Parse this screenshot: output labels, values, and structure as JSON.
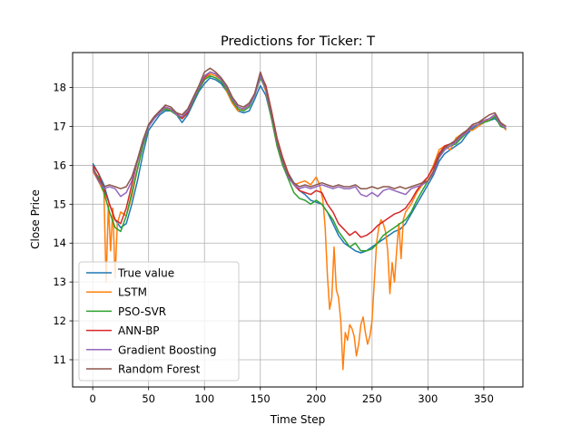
{
  "chart_data": {
    "type": "line",
    "title": "Predictions for Ticker: T",
    "xlabel": "Time Step",
    "ylabel": "Close Price",
    "xlim": [
      -18,
      385
    ],
    "ylim": [
      10.3,
      18.9
    ],
    "xticks": [
      0,
      50,
      100,
      150,
      200,
      250,
      300,
      350
    ],
    "yticks": [
      11,
      12,
      13,
      14,
      15,
      16,
      17,
      18
    ],
    "grid": true,
    "legend": "lower-left",
    "series": [
      {
        "name": "True value",
        "color": "#1f77b4",
        "x": [
          0,
          5,
          10,
          15,
          20,
          25,
          30,
          35,
          40,
          45,
          50,
          55,
          60,
          65,
          70,
          75,
          80,
          85,
          90,
          95,
          100,
          105,
          110,
          115,
          120,
          125,
          130,
          135,
          140,
          145,
          150,
          155,
          160,
          165,
          170,
          175,
          180,
          185,
          190,
          195,
          200,
          205,
          210,
          215,
          220,
          225,
          230,
          235,
          240,
          245,
          250,
          255,
          260,
          265,
          270,
          275,
          280,
          285,
          290,
          295,
          300,
          305,
          310,
          315,
          320,
          325,
          330,
          335,
          340,
          345,
          350,
          355,
          360,
          365,
          370
        ],
        "y": [
          16.05,
          15.8,
          15.5,
          15.0,
          14.6,
          14.4,
          14.5,
          15.0,
          15.6,
          16.3,
          16.9,
          17.1,
          17.3,
          17.4,
          17.4,
          17.3,
          17.1,
          17.3,
          17.6,
          17.9,
          18.1,
          18.25,
          18.2,
          18.1,
          17.9,
          17.6,
          17.4,
          17.35,
          17.4,
          17.7,
          18.05,
          17.8,
          17.2,
          16.6,
          16.1,
          15.8,
          15.55,
          15.35,
          15.25,
          15.1,
          15.05,
          15.0,
          14.8,
          14.5,
          14.2,
          14.0,
          13.9,
          13.8,
          13.75,
          13.8,
          13.9,
          14.0,
          14.1,
          14.2,
          14.3,
          14.35,
          14.5,
          14.75,
          15.0,
          15.25,
          15.5,
          15.75,
          16.1,
          16.3,
          16.4,
          16.5,
          16.6,
          16.8,
          16.95,
          17.05,
          17.1,
          17.15,
          17.2,
          17.05,
          16.95
        ]
      },
      {
        "name": "LSTM",
        "color": "#ff7f0e",
        "x": [
          0,
          5,
          10,
          12,
          14,
          16,
          18,
          20,
          22,
          25,
          30,
          35,
          40,
          45,
          50,
          55,
          60,
          65,
          70,
          75,
          80,
          85,
          90,
          95,
          100,
          105,
          110,
          115,
          120,
          125,
          130,
          135,
          140,
          145,
          150,
          155,
          160,
          165,
          170,
          175,
          180,
          185,
          190,
          195,
          200,
          203,
          206,
          208,
          210,
          212,
          214,
          216,
          218,
          220,
          222,
          224,
          226,
          228,
          230,
          232,
          234,
          236,
          238,
          240,
          242,
          244,
          246,
          248,
          250,
          252,
          254,
          256,
          258,
          260,
          262,
          264,
          266,
          268,
          270,
          272,
          274,
          276,
          278,
          280,
          285,
          290,
          295,
          300,
          305,
          310,
          315,
          320,
          325,
          330,
          335,
          340,
          345,
          350,
          355,
          360,
          365,
          370
        ],
        "y": [
          15.85,
          15.6,
          15.3,
          13.0,
          15.0,
          13.8,
          14.9,
          13.1,
          14.5,
          14.8,
          14.7,
          15.2,
          15.9,
          16.5,
          17.0,
          17.2,
          17.4,
          17.5,
          17.4,
          17.3,
          17.2,
          17.4,
          17.7,
          18.0,
          18.2,
          18.35,
          18.3,
          18.2,
          17.9,
          17.6,
          17.4,
          17.45,
          17.55,
          17.8,
          18.3,
          17.9,
          17.2,
          16.5,
          16.0,
          15.7,
          15.5,
          15.55,
          15.6,
          15.5,
          15.7,
          15.5,
          15.1,
          14.4,
          13.2,
          12.3,
          12.6,
          13.9,
          12.8,
          12.6,
          12.0,
          10.75,
          11.7,
          11.5,
          11.9,
          11.8,
          11.6,
          11.1,
          11.4,
          11.9,
          12.1,
          11.7,
          11.4,
          11.6,
          12.0,
          13.0,
          14.0,
          14.4,
          14.6,
          14.5,
          14.3,
          13.8,
          12.7,
          13.5,
          13.0,
          13.8,
          14.5,
          13.6,
          14.6,
          14.8,
          15.0,
          15.3,
          15.5,
          15.7,
          16.0,
          16.4,
          16.5,
          16.4,
          16.7,
          16.8,
          16.9,
          16.9,
          17.0,
          17.1,
          17.2,
          17.3,
          17.1,
          16.9
        ]
      },
      {
        "name": "PSO-SVR",
        "color": "#2ca02c",
        "x": [
          0,
          5,
          10,
          15,
          20,
          25,
          30,
          35,
          40,
          45,
          50,
          55,
          60,
          65,
          70,
          75,
          80,
          85,
          90,
          95,
          100,
          105,
          110,
          115,
          120,
          125,
          130,
          135,
          140,
          145,
          150,
          155,
          160,
          165,
          170,
          175,
          180,
          185,
          190,
          195,
          200,
          205,
          210,
          215,
          220,
          225,
          230,
          235,
          240,
          245,
          250,
          255,
          260,
          265,
          270,
          275,
          280,
          285,
          290,
          295,
          300,
          305,
          310,
          315,
          320,
          325,
          330,
          335,
          340,
          345,
          350,
          355,
          360,
          365,
          370
        ],
        "y": [
          15.9,
          15.7,
          15.3,
          14.8,
          14.4,
          14.3,
          14.7,
          15.3,
          15.9,
          16.5,
          17.0,
          17.2,
          17.35,
          17.45,
          17.4,
          17.3,
          17.2,
          17.35,
          17.65,
          17.95,
          18.2,
          18.3,
          18.25,
          18.15,
          17.95,
          17.65,
          17.45,
          17.4,
          17.5,
          17.8,
          18.25,
          17.95,
          17.2,
          16.5,
          16.0,
          15.65,
          15.3,
          15.15,
          15.1,
          15.0,
          15.1,
          15.0,
          14.8,
          14.6,
          14.3,
          14.1,
          13.9,
          14.0,
          13.8,
          13.8,
          13.85,
          14.0,
          14.2,
          14.3,
          14.4,
          14.5,
          14.6,
          14.8,
          15.1,
          15.35,
          15.6,
          15.85,
          16.2,
          16.4,
          16.5,
          16.55,
          16.7,
          16.85,
          17.0,
          17.05,
          17.1,
          17.15,
          17.25,
          17.0,
          16.95
        ]
      },
      {
        "name": "ANN-BP",
        "color": "#d62728",
        "x": [
          0,
          5,
          10,
          15,
          20,
          25,
          30,
          35,
          40,
          45,
          50,
          55,
          60,
          65,
          70,
          75,
          80,
          85,
          90,
          95,
          100,
          105,
          110,
          115,
          120,
          125,
          130,
          135,
          140,
          145,
          150,
          155,
          160,
          165,
          170,
          175,
          180,
          185,
          190,
          195,
          200,
          205,
          210,
          215,
          220,
          225,
          230,
          235,
          240,
          245,
          250,
          255,
          260,
          265,
          270,
          275,
          280,
          285,
          290,
          295,
          300,
          305,
          310,
          315,
          320,
          325,
          330,
          335,
          340,
          345,
          350,
          355,
          360,
          365,
          370
        ],
        "y": [
          16.0,
          15.8,
          15.4,
          15.0,
          14.6,
          14.5,
          14.9,
          15.5,
          16.1,
          16.6,
          17.05,
          17.25,
          17.4,
          17.5,
          17.45,
          17.35,
          17.2,
          17.35,
          17.7,
          18.0,
          18.25,
          18.4,
          18.35,
          18.2,
          18.0,
          17.7,
          17.5,
          17.45,
          17.55,
          17.85,
          18.35,
          18.05,
          17.4,
          16.7,
          16.2,
          15.8,
          15.5,
          15.35,
          15.3,
          15.25,
          15.35,
          15.3,
          15.0,
          14.8,
          14.5,
          14.35,
          14.2,
          14.3,
          14.15,
          14.2,
          14.3,
          14.45,
          14.55,
          14.65,
          14.75,
          14.8,
          14.9,
          15.1,
          15.35,
          15.55,
          15.7,
          15.95,
          16.3,
          16.5,
          16.55,
          16.6,
          16.75,
          16.9,
          17.05,
          17.1,
          17.15,
          17.2,
          17.3,
          17.05,
          16.95
        ]
      },
      {
        "name": "Gradient Boosting",
        "color": "#9467bd",
        "x": [
          0,
          5,
          10,
          15,
          20,
          25,
          30,
          35,
          40,
          45,
          50,
          55,
          60,
          65,
          70,
          75,
          80,
          85,
          90,
          95,
          100,
          105,
          110,
          115,
          120,
          125,
          130,
          135,
          140,
          145,
          150,
          155,
          160,
          165,
          170,
          175,
          180,
          185,
          190,
          195,
          200,
          205,
          210,
          215,
          220,
          225,
          230,
          235,
          240,
          245,
          250,
          255,
          260,
          265,
          270,
          275,
          280,
          285,
          290,
          295,
          300,
          305,
          310,
          315,
          320,
          325,
          330,
          335,
          340,
          345,
          350,
          355,
          360,
          365,
          370
        ],
        "y": [
          15.9,
          15.6,
          15.4,
          15.45,
          15.4,
          15.2,
          15.3,
          15.6,
          16.1,
          16.6,
          17.0,
          17.2,
          17.35,
          17.5,
          17.45,
          17.3,
          17.25,
          17.4,
          17.7,
          18.0,
          18.3,
          18.4,
          18.35,
          18.2,
          18.0,
          17.7,
          17.5,
          17.45,
          17.55,
          17.8,
          18.3,
          17.95,
          17.3,
          16.6,
          16.1,
          15.7,
          15.5,
          15.4,
          15.45,
          15.4,
          15.45,
          15.5,
          15.45,
          15.4,
          15.45,
          15.4,
          15.4,
          15.45,
          15.25,
          15.2,
          15.3,
          15.2,
          15.35,
          15.4,
          15.35,
          15.3,
          15.25,
          15.4,
          15.45,
          15.5,
          15.6,
          15.8,
          16.2,
          16.4,
          16.5,
          16.6,
          16.75,
          16.85,
          17.0,
          17.05,
          17.15,
          17.2,
          17.3,
          17.05,
          16.95
        ]
      },
      {
        "name": "Random Forest",
        "color": "#8c564b",
        "x": [
          0,
          5,
          10,
          15,
          20,
          25,
          30,
          35,
          40,
          45,
          50,
          55,
          60,
          65,
          70,
          75,
          80,
          85,
          90,
          95,
          100,
          105,
          110,
          115,
          120,
          125,
          130,
          135,
          140,
          145,
          150,
          155,
          160,
          165,
          170,
          175,
          180,
          185,
          190,
          195,
          200,
          205,
          210,
          215,
          220,
          225,
          230,
          235,
          240,
          245,
          250,
          255,
          260,
          265,
          270,
          275,
          280,
          285,
          290,
          295,
          300,
          305,
          310,
          315,
          320,
          325,
          330,
          335,
          340,
          345,
          350,
          355,
          360,
          365,
          370
        ],
        "y": [
          15.95,
          15.65,
          15.45,
          15.5,
          15.45,
          15.4,
          15.45,
          15.7,
          16.15,
          16.65,
          17.05,
          17.25,
          17.4,
          17.55,
          17.5,
          17.35,
          17.3,
          17.45,
          17.75,
          18.05,
          18.4,
          18.5,
          18.4,
          18.25,
          18.05,
          17.75,
          17.55,
          17.5,
          17.6,
          17.85,
          18.4,
          18.0,
          17.35,
          16.65,
          16.15,
          15.75,
          15.55,
          15.45,
          15.5,
          15.45,
          15.5,
          15.55,
          15.5,
          15.45,
          15.5,
          15.45,
          15.45,
          15.5,
          15.4,
          15.4,
          15.45,
          15.4,
          15.45,
          15.45,
          15.4,
          15.45,
          15.4,
          15.45,
          15.5,
          15.55,
          15.6,
          15.85,
          16.25,
          16.45,
          16.55,
          16.65,
          16.8,
          16.9,
          17.05,
          17.1,
          17.2,
          17.3,
          17.35,
          17.1,
          17.0
        ]
      }
    ]
  }
}
